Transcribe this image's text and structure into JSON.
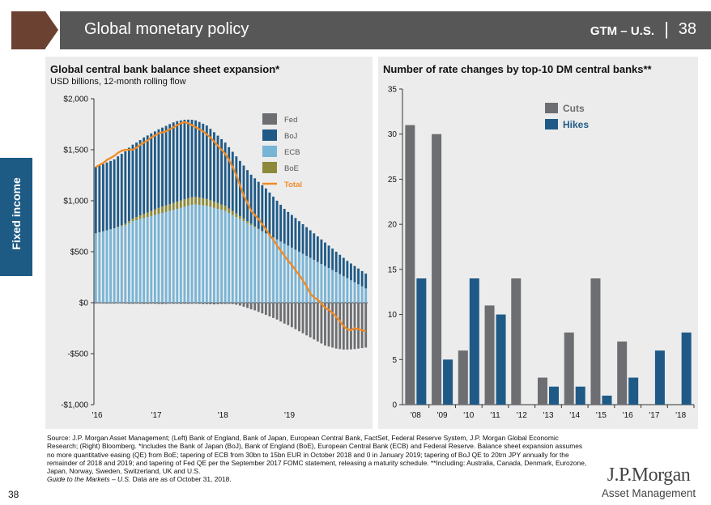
{
  "header": {
    "title": "Global monetary policy",
    "section": "GTM – U.S.",
    "separator": "|",
    "page": "38"
  },
  "side_tab": {
    "label": "Fixed income"
  },
  "colors": {
    "fed": "#6d6e71",
    "boj": "#1f5a87",
    "ecb": "#78b4d6",
    "boe": "#8c8a3a",
    "total": "#f08a24",
    "cuts": "#6d6e71",
    "hikes": "#1f5a87"
  },
  "chart_data": [
    {
      "type": "bar",
      "stacked": true,
      "title": "Global central bank balance sheet expansion*",
      "subtitle": "USD billions, 12-month rolling flow",
      "ylim": [
        -1000,
        2000
      ],
      "yticks": [
        2000,
        1500,
        1000,
        500,
        0,
        -500,
        -1000
      ],
      "ytick_labels": [
        "$2,000",
        "$1,500",
        "$1,000",
        "$500",
        "$0",
        "-$500",
        "-$1,000"
      ],
      "xtick_labels": [
        "'16",
        "'17",
        "'18",
        "'19"
      ],
      "legend": [
        "Fed",
        "BoJ",
        "ECB",
        "BoE",
        "Total"
      ],
      "series": [
        {
          "name": "Fed",
          "values": [
            -8,
            -8,
            -9,
            -10,
            -9,
            -10,
            -8,
            -9,
            -10,
            -11,
            -12,
            -10,
            -11,
            -13,
            -12,
            -11,
            -12,
            -13,
            -14,
            -12,
            -10,
            -12,
            -11,
            -12,
            -12,
            -12,
            -11,
            -10,
            -12,
            -14,
            -15,
            -16,
            -17,
            -15,
            -14,
            -13,
            -12,
            -14,
            -20,
            -28,
            -40,
            -52,
            -65,
            -75,
            -90,
            -105,
            -120,
            -135,
            -150,
            -165,
            -185,
            -205,
            -220,
            -240,
            -260,
            -280,
            -300,
            -320,
            -340,
            -360,
            -380,
            -400,
            -420,
            -430,
            -440,
            -450,
            -455,
            -460,
            -460,
            -458,
            -455,
            -450,
            -445,
            -440
          ]
        },
        {
          "name": "BoJ",
          "values": [
            650,
            655,
            660,
            665,
            670,
            675,
            690,
            700,
            710,
            720,
            725,
            730,
            740,
            750,
            755,
            760,
            765,
            770,
            775,
            780,
            785,
            790,
            790,
            785,
            780,
            770,
            760,
            750,
            740,
            730,
            720,
            700,
            680,
            660,
            640,
            620,
            600,
            580,
            560,
            540,
            520,
            500,
            480,
            470,
            460,
            450,
            440,
            420,
            400,
            380,
            360,
            340,
            330,
            320,
            310,
            300,
            290,
            280,
            270,
            260,
            250,
            240,
            230,
            220,
            210,
            200,
            190,
            180,
            170,
            165,
            160,
            155,
            150,
            145
          ]
        },
        {
          "name": "ECB",
          "values": [
            680,
            690,
            700,
            710,
            720,
            730,
            740,
            750,
            760,
            780,
            800,
            810,
            820,
            830,
            840,
            850,
            860,
            870,
            880,
            890,
            900,
            910,
            920,
            930,
            940,
            950,
            960,
            965,
            960,
            955,
            950,
            940,
            930,
            920,
            910,
            900,
            880,
            860,
            840,
            820,
            800,
            780,
            760,
            740,
            720,
            700,
            680,
            660,
            640,
            620,
            600,
            580,
            560,
            540,
            520,
            500,
            480,
            460,
            440,
            420,
            400,
            380,
            360,
            340,
            320,
            300,
            280,
            260,
            240,
            220,
            200,
            180,
            160,
            140
          ]
        },
        {
          "name": "BoE",
          "values": [
            0,
            0,
            0,
            0,
            0,
            0,
            5,
            10,
            15,
            20,
            25,
            30,
            35,
            40,
            45,
            50,
            55,
            60,
            62,
            64,
            66,
            68,
            70,
            72,
            74,
            75,
            74,
            73,
            72,
            70,
            68,
            65,
            62,
            58,
            54,
            50,
            45,
            40,
            35,
            30,
            25,
            20,
            15,
            10,
            5,
            2,
            0,
            0,
            0,
            0,
            0,
            0,
            0,
            0,
            0,
            0,
            0,
            0,
            0,
            0,
            0,
            0,
            0,
            0,
            0,
            0,
            0,
            0,
            0,
            0,
            0,
            0,
            0,
            0
          ]
        },
        {
          "name": "Total",
          "values": [
            1330,
            1350,
            1370,
            1400,
            1420,
            1440,
            1470,
            1490,
            1500,
            1500,
            1500,
            1520,
            1550,
            1570,
            1590,
            1620,
            1640,
            1660,
            1670,
            1680,
            1700,
            1720,
            1740,
            1760,
            1770,
            1760,
            1740,
            1720,
            1700,
            1680,
            1650,
            1620,
            1580,
            1540,
            1500,
            1460,
            1400,
            1330,
            1250,
            1150,
            1050,
            980,
            900,
            860,
            820,
            770,
            720,
            660,
            620,
            560,
            510,
            460,
            410,
            370,
            320,
            270,
            220,
            160,
            90,
            50,
            30,
            -10,
            -50,
            -70,
            -100,
            -140,
            -180,
            -230,
            -260,
            -270,
            -250,
            -260,
            -270,
            -280
          ]
        }
      ]
    },
    {
      "type": "bar",
      "title": "Number of rate changes by top-10 DM central banks**",
      "categories": [
        "'08",
        "'09",
        "'10",
        "'11",
        "'12",
        "'13",
        "'14",
        "'15",
        "'16",
        "'17",
        "'18"
      ],
      "ylim": [
        0,
        35
      ],
      "yticks": [
        0,
        5,
        10,
        15,
        20,
        25,
        30,
        35
      ],
      "ytick_labels": [
        "0",
        "5",
        "10",
        "15",
        "20",
        "25",
        "30",
        "35"
      ],
      "legend": [
        "Cuts",
        "Hikes"
      ],
      "series": [
        {
          "name": "Cuts",
          "values": [
            31,
            30,
            6,
            11,
            14,
            3,
            8,
            14,
            7,
            0,
            0
          ]
        },
        {
          "name": "Hikes",
          "values": [
            14,
            5,
            14,
            10,
            0,
            2,
            2,
            1,
            3,
            6,
            8
          ]
        }
      ]
    }
  ],
  "source": {
    "text": "Source: J.P. Morgan Asset Management; (Left) Bank of England, Bank of Japan, European Central Bank, FactSet, Federal Reserve System, J.P. Morgan Global Economic Research; (Right) Bloomberg. *Includes the Bank of Japan (BoJ), Bank of England (BoE), European Central Bank (ECB) and Federal Reserve. Balance sheet expansion assumes no more quantitative easing (QE) from BoE; tapering of ECB from 30bn to 15bn EUR in October 2018 and 0 in January 2019; tapering of BoJ QE to 20trn JPY annually for the remainder of 2018 and 2019; and tapering of Fed QE per the September 2017 FOMC statement, releasing a maturity schedule. **Including: Australia, Canada, Denmark, Eurozone, Japan, Norway, Sweden, Switzerland, UK and U.S.",
    "guide": "Guide to the Markets – U.S.",
    "asof": " Data are as of October 31, 2018."
  },
  "footer": {
    "page_number": "38",
    "logo_name": "J.P.Morgan",
    "logo_sub": "Asset Management"
  }
}
